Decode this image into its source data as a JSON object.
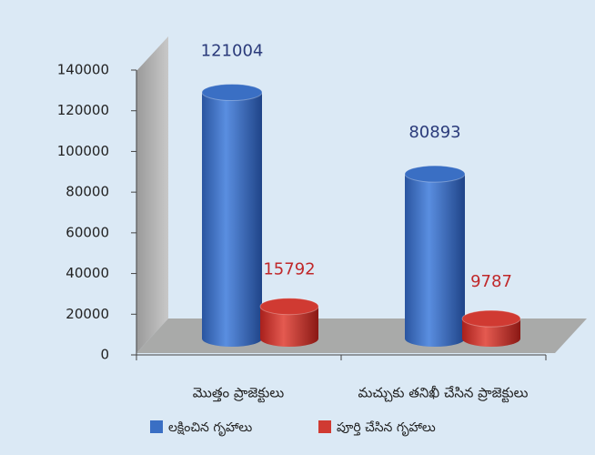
{
  "chart_data": {
    "type": "bar3d",
    "categories": [
      "మొత్తం ప్రాజెక్టులు",
      "మచ్చుకు తనిఖీ చేసిన ప్రాజెక్టులు"
    ],
    "series": [
      {
        "name": "లక్షించిన గృహాలు",
        "color": "#3a6fc4",
        "label_color": "#2a3a7a",
        "values": [
          121004,
          80893
        ]
      },
      {
        "name": "పూర్తి చేసిన గృహాలు",
        "color": "#d03a32",
        "label_color": "#c0282a",
        "values": [
          15792,
          9787
        ]
      }
    ],
    "ylim": [
      0,
      140000
    ],
    "yticks": [
      0,
      20000,
      40000,
      60000,
      80000,
      100000,
      120000,
      140000
    ]
  }
}
